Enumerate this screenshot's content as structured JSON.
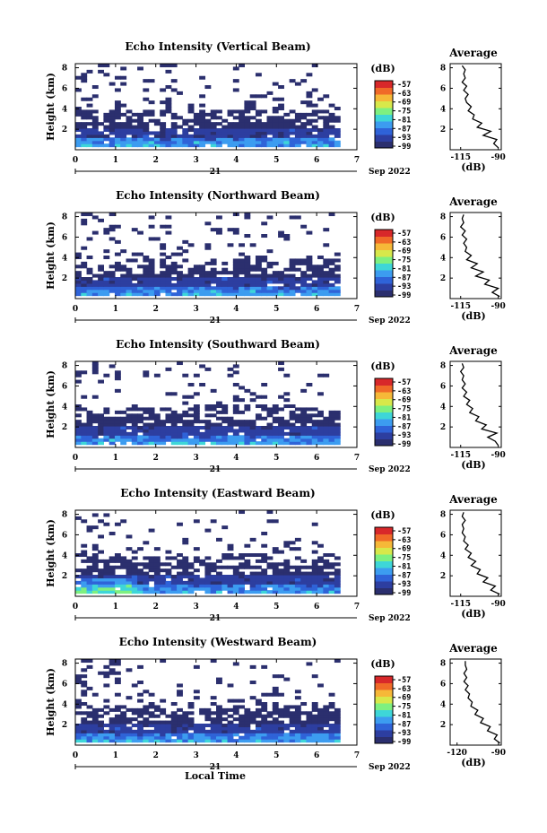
{
  "chart_data": [
    {
      "type": "heatmap",
      "title": "Echo Intensity (Vertical Beam)",
      "ylabel": "Height (km)",
      "xticks": [
        "0",
        "1",
        "2",
        "3",
        "4",
        "5",
        "6",
        "7"
      ],
      "yticks": [
        "2",
        "4",
        "6",
        "8"
      ],
      "date_day": "21",
      "date_month": "Sep 2022",
      "xlim": [
        0,
        7
      ],
      "ylim": [
        0,
        8.4
      ],
      "colorbar": {
        "unit": "(dB)",
        "labels": [
          "-57",
          "-63",
          "-69",
          "-75",
          "-81",
          "-87",
          "-93",
          "-99"
        ],
        "range": [
          -99,
          -57
        ]
      },
      "avg": {
        "title": "Average",
        "xlabel": "(dB)",
        "xticks": [
          "-115",
          "-90"
        ],
        "yticks": [
          "2",
          "4",
          "6",
          "8"
        ],
        "xlim": [
          -122,
          -88
        ],
        "profile": [
          [
            -90,
            0.2
          ],
          [
            -93,
            0.6
          ],
          [
            -91,
            1.0
          ],
          [
            -100,
            1.4
          ],
          [
            -95,
            1.8
          ],
          [
            -104,
            2.2
          ],
          [
            -101,
            2.6
          ],
          [
            -107,
            3.0
          ],
          [
            -106,
            3.4
          ],
          [
            -110,
            3.8
          ],
          [
            -108,
            4.2
          ],
          [
            -111,
            4.6
          ],
          [
            -112,
            5.0
          ],
          [
            -110,
            5.4
          ],
          [
            -113,
            5.8
          ],
          [
            -111,
            6.2
          ],
          [
            -114,
            6.6
          ],
          [
            -112,
            7.0
          ],
          [
            -113,
            7.4
          ],
          [
            -112,
            7.8
          ],
          [
            -114,
            8.2
          ]
        ]
      }
    },
    {
      "type": "heatmap",
      "title": "Echo Intensity (Northward Beam)",
      "ylabel": "Height (km)",
      "xticks": [
        "0",
        "1",
        "2",
        "3",
        "4",
        "5",
        "6",
        "7"
      ],
      "yticks": [
        "2",
        "4",
        "6",
        "8"
      ],
      "date_day": "21",
      "date_month": "Sep 2022",
      "xlim": [
        0,
        7
      ],
      "ylim": [
        0,
        8.4
      ],
      "colorbar": {
        "unit": "(dB)",
        "labels": [
          "-57",
          "-63",
          "-69",
          "-75",
          "-81",
          "-87",
          "-93",
          "-99"
        ],
        "range": [
          -99,
          -57
        ]
      },
      "avg": {
        "title": "Average",
        "xlabel": "(dB)",
        "xticks": [
          "-115",
          "-90"
        ],
        "yticks": [
          "2",
          "4",
          "6",
          "8"
        ],
        "xlim": [
          -122,
          -88
        ],
        "profile": [
          [
            -89,
            0.2
          ],
          [
            -94,
            0.6
          ],
          [
            -90,
            1.0
          ],
          [
            -99,
            1.4
          ],
          [
            -96,
            1.8
          ],
          [
            -105,
            2.2
          ],
          [
            -100,
            2.6
          ],
          [
            -108,
            3.0
          ],
          [
            -104,
            3.4
          ],
          [
            -111,
            3.8
          ],
          [
            -108,
            4.2
          ],
          [
            -112,
            4.6
          ],
          [
            -111,
            5.0
          ],
          [
            -113,
            5.4
          ],
          [
            -111,
            5.8
          ],
          [
            -114,
            6.2
          ],
          [
            -112,
            6.6
          ],
          [
            -115,
            7.0
          ],
          [
            -113,
            7.4
          ],
          [
            -114,
            7.8
          ],
          [
            -113,
            8.2
          ]
        ]
      }
    },
    {
      "type": "heatmap",
      "title": "Echo Intensity (Southward Beam)",
      "ylabel": "Height (km)",
      "xticks": [
        "0",
        "1",
        "2",
        "3",
        "4",
        "5",
        "6",
        "7"
      ],
      "yticks": [
        "2",
        "4",
        "6",
        "8"
      ],
      "date_day": "21",
      "date_month": "Sep 2022",
      "xlim": [
        0,
        7
      ],
      "ylim": [
        0,
        8.4
      ],
      "colorbar": {
        "unit": "(dB)",
        "labels": [
          "-57",
          "-63",
          "-69",
          "-75",
          "-81",
          "-87",
          "-93",
          "-99"
        ],
        "range": [
          -99,
          -57
        ]
      },
      "avg": {
        "title": "Average",
        "xlabel": "(dB)",
        "xticks": [
          "-115",
          "-90"
        ],
        "yticks": [
          "2",
          "4",
          "6",
          "8"
        ],
        "xlim": [
          -122,
          -88
        ],
        "profile": [
          [
            -90,
            0.2
          ],
          [
            -92,
            0.6
          ],
          [
            -97,
            1.0
          ],
          [
            -91,
            1.4
          ],
          [
            -101,
            1.8
          ],
          [
            -98,
            2.2
          ],
          [
            -105,
            2.6
          ],
          [
            -103,
            3.0
          ],
          [
            -109,
            3.4
          ],
          [
            -107,
            3.8
          ],
          [
            -111,
            4.2
          ],
          [
            -109,
            4.6
          ],
          [
            -113,
            5.0
          ],
          [
            -111,
            5.4
          ],
          [
            -114,
            5.8
          ],
          [
            -112,
            6.2
          ],
          [
            -114,
            6.6
          ],
          [
            -113,
            7.0
          ],
          [
            -115,
            7.4
          ],
          [
            -113,
            7.8
          ],
          [
            -114,
            8.2
          ]
        ]
      }
    },
    {
      "type": "heatmap",
      "title": "Echo Intensity (Eastward Beam)",
      "ylabel": "Height (km)",
      "xticks": [
        "0",
        "1",
        "2",
        "3",
        "4",
        "5",
        "6",
        "7"
      ],
      "yticks": [
        "2",
        "4",
        "6",
        "8"
      ],
      "date_day": "21",
      "date_month": "Sep 2022",
      "xlim": [
        0,
        7
      ],
      "ylim": [
        0,
        8.4
      ],
      "colorbar": {
        "unit": "(dB)",
        "labels": [
          "-57",
          "-63",
          "-69",
          "-75",
          "-81",
          "-87",
          "-93",
          "-99"
        ],
        "range": [
          -99,
          -57
        ]
      },
      "avg": {
        "title": "Average",
        "xlabel": "(dB)",
        "xticks": [
          "-115",
          "-90"
        ],
        "yticks": [
          "2",
          "4",
          "6",
          "8"
        ],
        "xlim": [
          -122,
          -88
        ],
        "profile": [
          [
            -89,
            0.2
          ],
          [
            -95,
            0.6
          ],
          [
            -92,
            1.0
          ],
          [
            -100,
            1.4
          ],
          [
            -97,
            1.8
          ],
          [
            -104,
            2.2
          ],
          [
            -102,
            2.6
          ],
          [
            -108,
            3.0
          ],
          [
            -105,
            3.4
          ],
          [
            -110,
            3.8
          ],
          [
            -108,
            4.2
          ],
          [
            -112,
            4.6
          ],
          [
            -110,
            5.0
          ],
          [
            -113,
            5.4
          ],
          [
            -112,
            5.8
          ],
          [
            -114,
            6.2
          ],
          [
            -113,
            6.6
          ],
          [
            -114,
            7.0
          ],
          [
            -112,
            7.4
          ],
          [
            -114,
            7.8
          ],
          [
            -113,
            8.2
          ]
        ]
      }
    },
    {
      "type": "heatmap",
      "title": "Echo Intensity (Westward Beam)",
      "ylabel": "Height (km)",
      "xticks": [
        "0",
        "1",
        "2",
        "3",
        "4",
        "5",
        "6",
        "7"
      ],
      "yticks": [
        "2",
        "4",
        "6",
        "8"
      ],
      "date_day": "21",
      "date_month": "Sep 2022",
      "xlabel": "Local Time",
      "xlim": [
        0,
        7
      ],
      "ylim": [
        0,
        8.4
      ],
      "colorbar": {
        "unit": "(dB)",
        "labels": [
          "-57",
          "-63",
          "-69",
          "-75",
          "-81",
          "-87",
          "-93",
          "-99"
        ],
        "range": [
          -99,
          -57
        ]
      },
      "avg": {
        "title": "Average",
        "xlabel": "(dB)",
        "xticks": [
          "-120",
          "-90"
        ],
        "yticks": [
          "2",
          "4",
          "6",
          "8"
        ],
        "xlim": [
          -125,
          -88
        ],
        "profile": [
          [
            -89,
            0.2
          ],
          [
            -93,
            0.6
          ],
          [
            -91,
            1.0
          ],
          [
            -98,
            1.4
          ],
          [
            -96,
            1.8
          ],
          [
            -103,
            2.2
          ],
          [
            -101,
            2.6
          ],
          [
            -107,
            3.0
          ],
          [
            -105,
            3.4
          ],
          [
            -110,
            3.8
          ],
          [
            -109,
            4.2
          ],
          [
            -112,
            4.6
          ],
          [
            -111,
            5.0
          ],
          [
            -114,
            5.4
          ],
          [
            -112,
            5.8
          ],
          [
            -115,
            6.2
          ],
          [
            -113,
            6.6
          ],
          [
            -115,
            7.0
          ],
          [
            -113,
            7.4
          ],
          [
            -114,
            7.8
          ],
          [
            -114,
            8.2
          ]
        ]
      }
    }
  ],
  "colors": {
    "background": "#ffffff",
    "axis": "#000000",
    "empty_cell": "#ffffff",
    "colormap": [
      "#2b2f6e",
      "#2d3ea0",
      "#2f63d8",
      "#3c9cf0",
      "#3ed6d8",
      "#7ef080",
      "#d8e84a",
      "#f6b838",
      "#f06a28",
      "#d8282a"
    ]
  }
}
